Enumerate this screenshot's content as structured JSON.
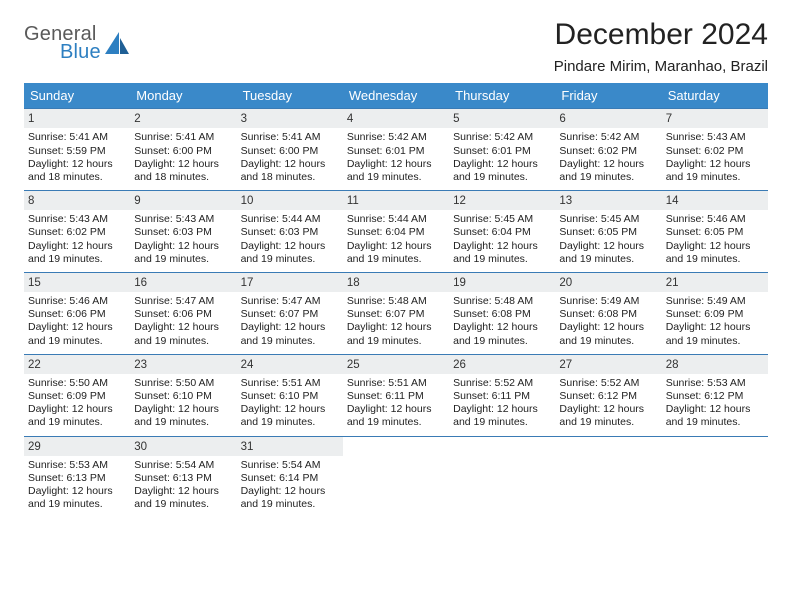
{
  "brand": {
    "line1": "General",
    "line2": "Blue",
    "color_gray": "#5a5a5a",
    "color_blue": "#2d7fc1"
  },
  "title": "December 2024",
  "location": "Pindare Mirim, Maranhao, Brazil",
  "header_bg": "#3a89c9",
  "row_divider": "#3a7bb5",
  "daynum_bg": "#eceeef",
  "background": "#ffffff",
  "weekdays": [
    "Sunday",
    "Monday",
    "Tuesday",
    "Wednesday",
    "Thursday",
    "Friday",
    "Saturday"
  ],
  "weeks": [
    [
      {
        "n": "1",
        "sr": "Sunrise: 5:41 AM",
        "ss": "Sunset: 5:59 PM",
        "d1": "Daylight: 12 hours",
        "d2": "and 18 minutes."
      },
      {
        "n": "2",
        "sr": "Sunrise: 5:41 AM",
        "ss": "Sunset: 6:00 PM",
        "d1": "Daylight: 12 hours",
        "d2": "and 18 minutes."
      },
      {
        "n": "3",
        "sr": "Sunrise: 5:41 AM",
        "ss": "Sunset: 6:00 PM",
        "d1": "Daylight: 12 hours",
        "d2": "and 18 minutes."
      },
      {
        "n": "4",
        "sr": "Sunrise: 5:42 AM",
        "ss": "Sunset: 6:01 PM",
        "d1": "Daylight: 12 hours",
        "d2": "and 19 minutes."
      },
      {
        "n": "5",
        "sr": "Sunrise: 5:42 AM",
        "ss": "Sunset: 6:01 PM",
        "d1": "Daylight: 12 hours",
        "d2": "and 19 minutes."
      },
      {
        "n": "6",
        "sr": "Sunrise: 5:42 AM",
        "ss": "Sunset: 6:02 PM",
        "d1": "Daylight: 12 hours",
        "d2": "and 19 minutes."
      },
      {
        "n": "7",
        "sr": "Sunrise: 5:43 AM",
        "ss": "Sunset: 6:02 PM",
        "d1": "Daylight: 12 hours",
        "d2": "and 19 minutes."
      }
    ],
    [
      {
        "n": "8",
        "sr": "Sunrise: 5:43 AM",
        "ss": "Sunset: 6:02 PM",
        "d1": "Daylight: 12 hours",
        "d2": "and 19 minutes."
      },
      {
        "n": "9",
        "sr": "Sunrise: 5:43 AM",
        "ss": "Sunset: 6:03 PM",
        "d1": "Daylight: 12 hours",
        "d2": "and 19 minutes."
      },
      {
        "n": "10",
        "sr": "Sunrise: 5:44 AM",
        "ss": "Sunset: 6:03 PM",
        "d1": "Daylight: 12 hours",
        "d2": "and 19 minutes."
      },
      {
        "n": "11",
        "sr": "Sunrise: 5:44 AM",
        "ss": "Sunset: 6:04 PM",
        "d1": "Daylight: 12 hours",
        "d2": "and 19 minutes."
      },
      {
        "n": "12",
        "sr": "Sunrise: 5:45 AM",
        "ss": "Sunset: 6:04 PM",
        "d1": "Daylight: 12 hours",
        "d2": "and 19 minutes."
      },
      {
        "n": "13",
        "sr": "Sunrise: 5:45 AM",
        "ss": "Sunset: 6:05 PM",
        "d1": "Daylight: 12 hours",
        "d2": "and 19 minutes."
      },
      {
        "n": "14",
        "sr": "Sunrise: 5:46 AM",
        "ss": "Sunset: 6:05 PM",
        "d1": "Daylight: 12 hours",
        "d2": "and 19 minutes."
      }
    ],
    [
      {
        "n": "15",
        "sr": "Sunrise: 5:46 AM",
        "ss": "Sunset: 6:06 PM",
        "d1": "Daylight: 12 hours",
        "d2": "and 19 minutes."
      },
      {
        "n": "16",
        "sr": "Sunrise: 5:47 AM",
        "ss": "Sunset: 6:06 PM",
        "d1": "Daylight: 12 hours",
        "d2": "and 19 minutes."
      },
      {
        "n": "17",
        "sr": "Sunrise: 5:47 AM",
        "ss": "Sunset: 6:07 PM",
        "d1": "Daylight: 12 hours",
        "d2": "and 19 minutes."
      },
      {
        "n": "18",
        "sr": "Sunrise: 5:48 AM",
        "ss": "Sunset: 6:07 PM",
        "d1": "Daylight: 12 hours",
        "d2": "and 19 minutes."
      },
      {
        "n": "19",
        "sr": "Sunrise: 5:48 AM",
        "ss": "Sunset: 6:08 PM",
        "d1": "Daylight: 12 hours",
        "d2": "and 19 minutes."
      },
      {
        "n": "20",
        "sr": "Sunrise: 5:49 AM",
        "ss": "Sunset: 6:08 PM",
        "d1": "Daylight: 12 hours",
        "d2": "and 19 minutes."
      },
      {
        "n": "21",
        "sr": "Sunrise: 5:49 AM",
        "ss": "Sunset: 6:09 PM",
        "d1": "Daylight: 12 hours",
        "d2": "and 19 minutes."
      }
    ],
    [
      {
        "n": "22",
        "sr": "Sunrise: 5:50 AM",
        "ss": "Sunset: 6:09 PM",
        "d1": "Daylight: 12 hours",
        "d2": "and 19 minutes."
      },
      {
        "n": "23",
        "sr": "Sunrise: 5:50 AM",
        "ss": "Sunset: 6:10 PM",
        "d1": "Daylight: 12 hours",
        "d2": "and 19 minutes."
      },
      {
        "n": "24",
        "sr": "Sunrise: 5:51 AM",
        "ss": "Sunset: 6:10 PM",
        "d1": "Daylight: 12 hours",
        "d2": "and 19 minutes."
      },
      {
        "n": "25",
        "sr": "Sunrise: 5:51 AM",
        "ss": "Sunset: 6:11 PM",
        "d1": "Daylight: 12 hours",
        "d2": "and 19 minutes."
      },
      {
        "n": "26",
        "sr": "Sunrise: 5:52 AM",
        "ss": "Sunset: 6:11 PM",
        "d1": "Daylight: 12 hours",
        "d2": "and 19 minutes."
      },
      {
        "n": "27",
        "sr": "Sunrise: 5:52 AM",
        "ss": "Sunset: 6:12 PM",
        "d1": "Daylight: 12 hours",
        "d2": "and 19 minutes."
      },
      {
        "n": "28",
        "sr": "Sunrise: 5:53 AM",
        "ss": "Sunset: 6:12 PM",
        "d1": "Daylight: 12 hours",
        "d2": "and 19 minutes."
      }
    ],
    [
      {
        "n": "29",
        "sr": "Sunrise: 5:53 AM",
        "ss": "Sunset: 6:13 PM",
        "d1": "Daylight: 12 hours",
        "d2": "and 19 minutes."
      },
      {
        "n": "30",
        "sr": "Sunrise: 5:54 AM",
        "ss": "Sunset: 6:13 PM",
        "d1": "Daylight: 12 hours",
        "d2": "and 19 minutes."
      },
      {
        "n": "31",
        "sr": "Sunrise: 5:54 AM",
        "ss": "Sunset: 6:14 PM",
        "d1": "Daylight: 12 hours",
        "d2": "and 19 minutes."
      },
      {
        "empty": true
      },
      {
        "empty": true
      },
      {
        "empty": true
      },
      {
        "empty": true
      }
    ]
  ]
}
